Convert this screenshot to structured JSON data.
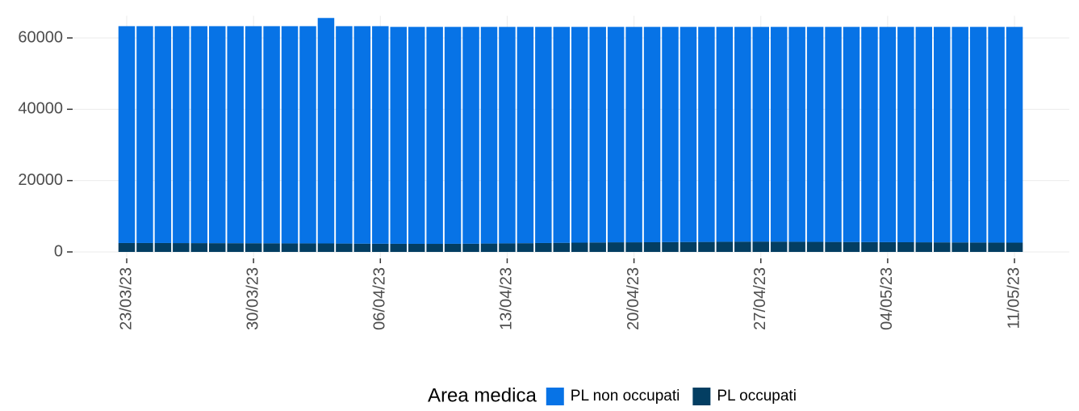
{
  "chart_data": {
    "type": "stacked_bar",
    "categories": [
      "23/03/23",
      null,
      null,
      null,
      null,
      null,
      null,
      "30/03/23",
      null,
      null,
      null,
      null,
      null,
      null,
      "06/04/23",
      null,
      null,
      null,
      null,
      null,
      null,
      "13/04/23",
      null,
      null,
      null,
      null,
      null,
      null,
      "20/04/23",
      null,
      null,
      null,
      null,
      null,
      null,
      "27/04/23",
      null,
      null,
      null,
      null,
      null,
      null,
      "04/05/23",
      null,
      null,
      null,
      null,
      null,
      null,
      "11/05/23"
    ],
    "series": [
      {
        "name": "PL non occupati",
        "color": "#0773e6",
        "values": [
          60800,
          60800,
          60800,
          60820,
          60830,
          60840,
          60850,
          60860,
          60880,
          60900,
          60900,
          63220,
          60950,
          60980,
          61000,
          60820,
          60830,
          60840,
          60820,
          60800,
          60750,
          60700,
          60650,
          60600,
          60550,
          60500,
          60450,
          60400,
          60400,
          60380,
          60350,
          60320,
          60300,
          60250,
          60220,
          60200,
          60220,
          60250,
          60280,
          60300,
          60320,
          60340,
          60360,
          60380,
          60400,
          60420,
          60440,
          60460,
          60480,
          60500
        ]
      },
      {
        "name": "PL occupati",
        "color": "#033e62",
        "values": [
          2500,
          2500,
          2500,
          2480,
          2470,
          2460,
          2450,
          2440,
          2420,
          2400,
          2400,
          2380,
          2350,
          2320,
          2300,
          2280,
          2270,
          2260,
          2280,
          2300,
          2350,
          2400,
          2450,
          2500,
          2550,
          2600,
          2650,
          2700,
          2700,
          2720,
          2750,
          2780,
          2800,
          2850,
          2880,
          2900,
          2880,
          2850,
          2820,
          2800,
          2780,
          2760,
          2740,
          2720,
          2700,
          2680,
          2660,
          2640,
          2620,
          2600
        ]
      }
    ],
    "legend_title": "Area medica",
    "ylim": [
      -1800,
      66200
    ],
    "yticks": [
      0,
      20000,
      40000,
      60000
    ],
    "grid": true,
    "legend": "bottom"
  }
}
